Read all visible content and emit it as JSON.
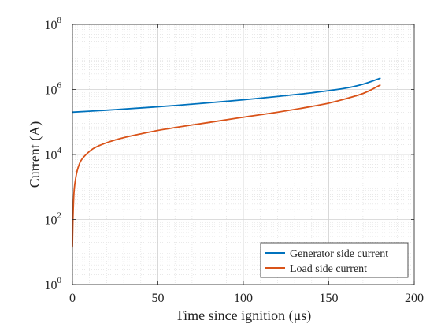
{
  "chart_data": {
    "type": "line",
    "xlabel": "Time since ignition (μs)",
    "ylabel": "Current (A)",
    "xlim": [
      0,
      200
    ],
    "ylim": [
      1,
      100000000
    ],
    "yscale": "log",
    "grid": true,
    "minor_grid": true,
    "legend_position": "bottom-right",
    "x_ticks": [
      {
        "value": 0,
        "label": "0"
      },
      {
        "value": 50,
        "label": "50"
      },
      {
        "value": 100,
        "label": "100"
      },
      {
        "value": 150,
        "label": "150"
      },
      {
        "value": 200,
        "label": "200"
      }
    ],
    "y_ticks": [
      {
        "value": 1,
        "base": "10",
        "exp": "0"
      },
      {
        "value": 100,
        "base": "10",
        "exp": "2"
      },
      {
        "value": 10000,
        "base": "10",
        "exp": "4"
      },
      {
        "value": 1000000,
        "base": "10",
        "exp": "6"
      },
      {
        "value": 100000000,
        "base": "10",
        "exp": "8"
      }
    ],
    "series": [
      {
        "name": "Generator side current",
        "color": "#0072BD",
        "x": [
          0,
          20,
          40,
          60,
          80,
          100,
          120,
          140,
          160,
          170,
          180
        ],
        "y": [
          200000,
          230000,
          270000,
          320000,
          390000,
          480000,
          610000,
          790000,
          1100000,
          1450000,
          2200000
        ]
      },
      {
        "name": "Load side current",
        "color": "#D95319",
        "x": [
          0,
          0.3,
          1,
          2,
          3,
          5,
          8,
          12,
          20,
          30,
          40,
          50,
          60,
          80,
          100,
          120,
          140,
          150,
          160,
          170,
          180
        ],
        "y": [
          15,
          100,
          800,
          2000,
          3500,
          6500,
          10000,
          15000,
          23000,
          33000,
          43000,
          55000,
          67000,
          97000,
          140000,
          200000,
          300000,
          380000,
          520000,
          750000,
          1350000
        ]
      }
    ]
  }
}
